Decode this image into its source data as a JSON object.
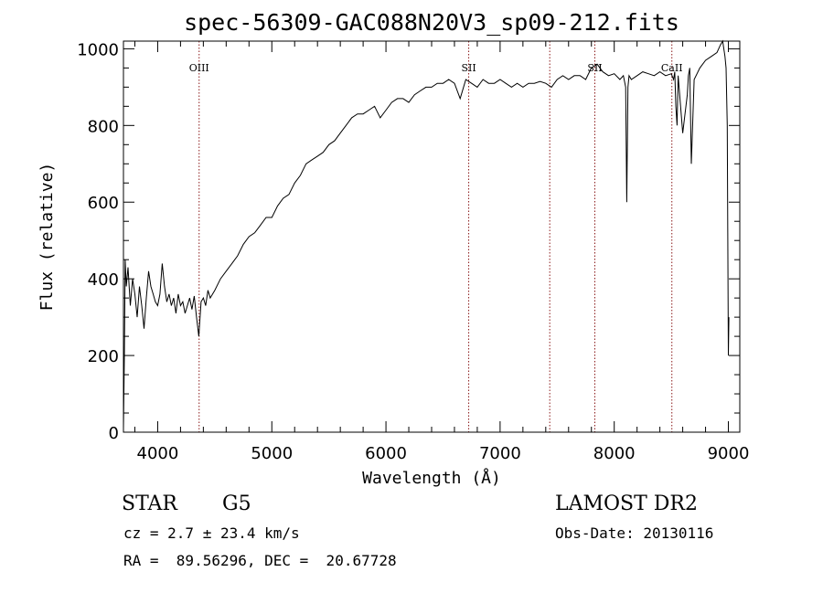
{
  "chart_data": {
    "type": "line",
    "title": "spec-56309-GAC088N20V3_sp09-212.fits",
    "xlabel": "Wavelength (Å)",
    "ylabel": "Flux (relative)",
    "xlim": [
      3700,
      9100
    ],
    "ylim": [
      0,
      1020
    ],
    "xticks": [
      4000,
      5000,
      6000,
      7000,
      8000,
      9000
    ],
    "yticks": [
      0,
      200,
      400,
      600,
      800,
      1000
    ],
    "x_minor_step": 200,
    "y_minor_step": 50,
    "series": [
      {
        "x": [
          3700,
          3708,
          3715,
          3725,
          3740,
          3760,
          3780,
          3800,
          3820,
          3840,
          3860,
          3880,
          3900,
          3920,
          3940,
          3960,
          3980,
          4000,
          4020,
          4040,
          4060,
          4080,
          4100,
          4120,
          4140,
          4160,
          4180,
          4200,
          4220,
          4240,
          4260,
          4280,
          4300,
          4320,
          4340,
          4360,
          4380,
          4400,
          4420,
          4440,
          4460,
          4500,
          4550,
          4600,
          4650,
          4700,
          4750,
          4800,
          4850,
          4900,
          4950,
          5000,
          5050,
          5100,
          5150,
          5200,
          5250,
          5300,
          5350,
          5400,
          5450,
          5500,
          5550,
          5600,
          5650,
          5700,
          5750,
          5800,
          5850,
          5900,
          5950,
          6000,
          6050,
          6100,
          6150,
          6200,
          6250,
          6300,
          6350,
          6400,
          6450,
          6500,
          6550,
          6600,
          6650,
          6700,
          6750,
          6800,
          6850,
          6900,
          6950,
          7000,
          7050,
          7100,
          7150,
          7200,
          7250,
          7300,
          7350,
          7400,
          7450,
          7500,
          7550,
          7600,
          7650,
          7700,
          7750,
          7800,
          7850,
          7900,
          7950,
          8000,
          8050,
          8080,
          8100,
          8110,
          8120,
          8130,
          8150,
          8200,
          8250,
          8300,
          8350,
          8400,
          8450,
          8500,
          8520,
          8530,
          8540,
          8550,
          8560,
          8600,
          8640,
          8650,
          8662,
          8675,
          8700,
          8750,
          8800,
          8850,
          8900,
          8930,
          8950,
          8970,
          8980,
          8990,
          9000,
          9005
        ],
        "y": [
          10,
          200,
          450,
          380,
          430,
          330,
          400,
          360,
          300,
          380,
          330,
          270,
          350,
          420,
          380,
          360,
          340,
          330,
          360,
          440,
          380,
          340,
          360,
          330,
          350,
          310,
          360,
          330,
          340,
          310,
          330,
          350,
          320,
          355,
          300,
          250,
          340,
          350,
          330,
          370,
          350,
          370,
          400,
          420,
          440,
          460,
          490,
          510,
          520,
          540,
          560,
          560,
          590,
          610,
          620,
          650,
          670,
          700,
          710,
          720,
          730,
          750,
          760,
          780,
          800,
          820,
          830,
          830,
          840,
          850,
          820,
          840,
          860,
          870,
          870,
          860,
          880,
          890,
          900,
          900,
          910,
          910,
          920,
          910,
          870,
          920,
          910,
          900,
          920,
          910,
          910,
          920,
          910,
          900,
          910,
          900,
          910,
          910,
          915,
          910,
          900,
          920,
          930,
          920,
          930,
          930,
          920,
          950,
          960,
          940,
          930,
          935,
          920,
          930,
          900,
          600,
          900,
          930,
          920,
          930,
          940,
          935,
          930,
          940,
          930,
          935,
          920,
          940,
          850,
          800,
          930,
          780,
          880,
          930,
          950,
          700,
          920,
          950,
          970,
          980,
          990,
          1010,
          1020,
          980,
          950,
          800,
          200,
          300
        ]
      }
    ],
    "annotations": [
      {
        "label": "OIII",
        "x": 4363
      },
      {
        "label": "SII",
        "x": 6725
      },
      {
        "label": "",
        "x": 7435
      },
      {
        "label": "SII",
        "x": 7830
      },
      {
        "label": "CaII",
        "x": 8505
      }
    ],
    "grid": false,
    "legend": "none",
    "colors": {
      "line": "#000000",
      "marker": "#8b1a1a",
      "axis": "#000000"
    }
  },
  "info": {
    "object_class": "STAR",
    "subclass": "G5",
    "survey": "LAMOST DR2",
    "cz": "cz = 2.7 ± 23.4 km/s",
    "obs_date": "Obs-Date: 20130116",
    "radec": "RA =  89.56296, DEC =  20.67728"
  }
}
